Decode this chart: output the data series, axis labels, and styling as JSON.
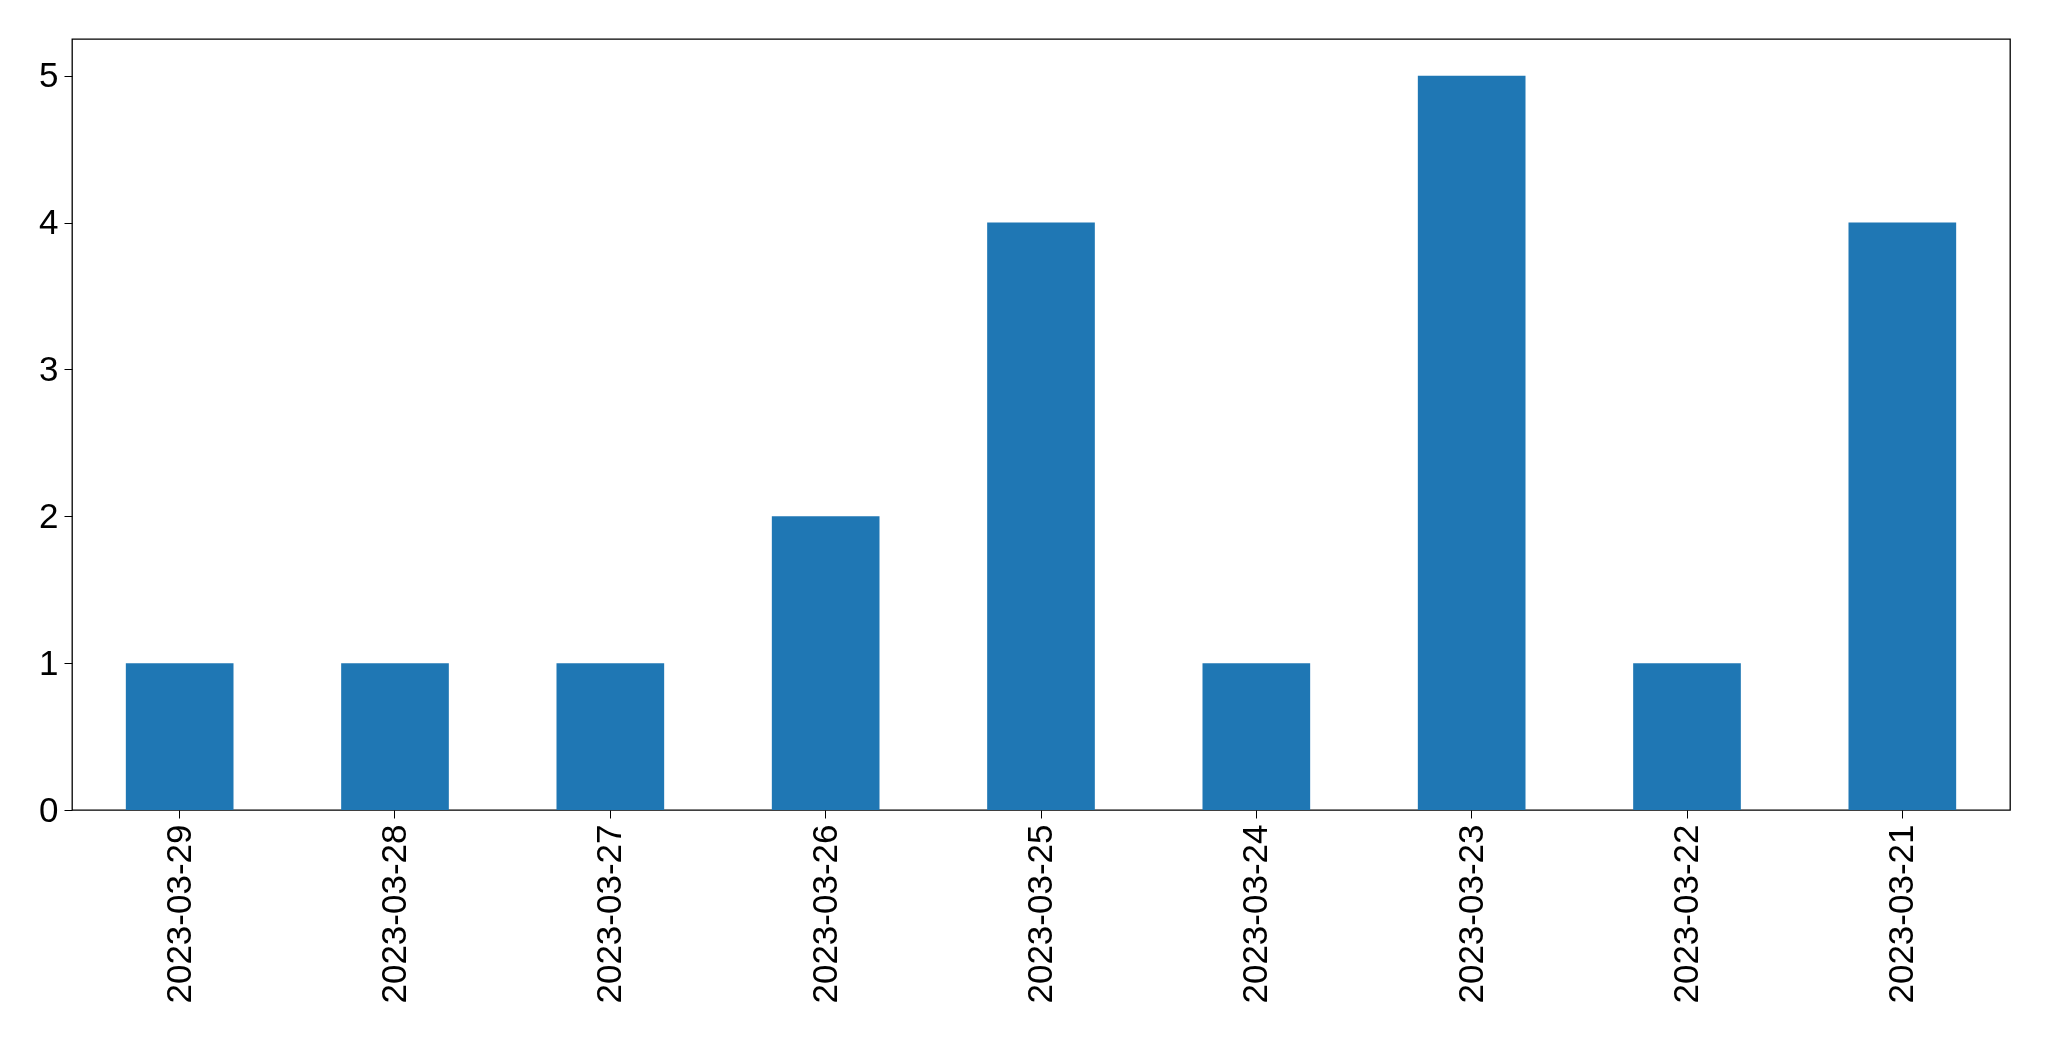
{
  "chart_data": {
    "type": "bar",
    "categories": [
      "2023-03-29",
      "2023-03-28",
      "2023-03-27",
      "2023-03-26",
      "2023-03-25",
      "2023-03-24",
      "2023-03-23",
      "2023-03-22",
      "2023-03-21"
    ],
    "values": [
      1,
      1,
      1,
      2,
      4,
      1,
      5,
      1,
      4
    ],
    "color": "#1f77b4",
    "ylim": [
      0,
      5.25
    ],
    "yticks": [
      0,
      1,
      2,
      3,
      4,
      5
    ],
    "grid": false
  }
}
